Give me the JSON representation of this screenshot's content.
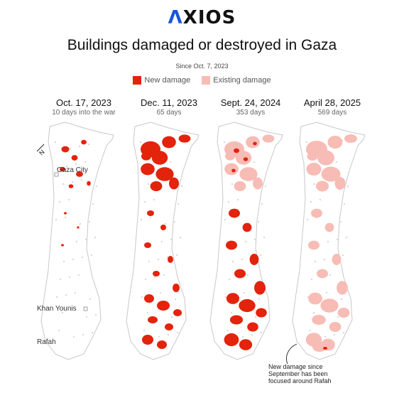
{
  "brand": {
    "logo_text": "XIOS",
    "logo_mark": "Λ"
  },
  "title": "Buildings damaged or destroyed in Gaza",
  "subtitle": "Since Oct. 7, 2023",
  "legend": [
    {
      "label": "New damage",
      "color": "#e3230b"
    },
    {
      "label": "Existing damage",
      "color": "#f7bcb5"
    }
  ],
  "colors": {
    "new": "#e3230b",
    "existing": "#f7bcb5",
    "land": "#ffffff",
    "outline": "#c8c8c8",
    "buildings": "#d9d9d9"
  },
  "compass_label": "N",
  "places": {
    "gaza_city": "Gaza City",
    "khan_younis": "Khan Younis",
    "rafah": "Rafah"
  },
  "panels": [
    {
      "date": "Oct. 17, 2023",
      "sub": "10 days into the war"
    },
    {
      "date": "Dec. 11, 2023",
      "sub": "65 days"
    },
    {
      "date": "Sept. 24, 2024",
      "sub": "353 days"
    },
    {
      "date": "April 28, 2025",
      "sub": "569 days"
    }
  ],
  "annotation": [
    "New damage since",
    "September has been",
    "focused around Rafah"
  ]
}
